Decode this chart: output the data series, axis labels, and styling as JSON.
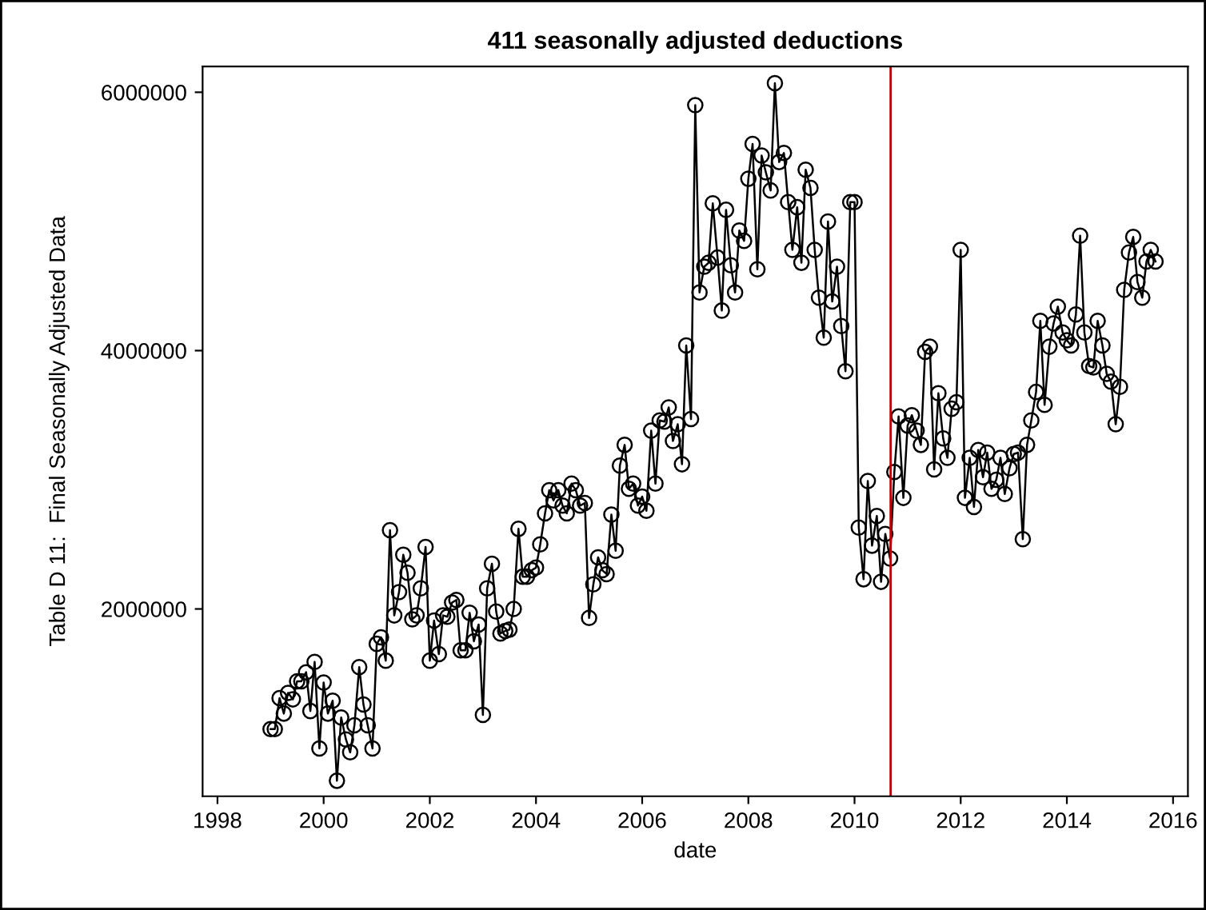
{
  "chart_data": {
    "type": "line",
    "title": "411 seasonally adjusted deductions",
    "xlabel": "date",
    "ylabel": "Table D 11:  Final Seasonally Adjusted Data",
    "series": [
      {
        "color": "#000000",
        "x": [
          1999.0,
          1999.08,
          1999.17,
          1999.25,
          1999.33,
          1999.42,
          1999.5,
          1999.58,
          1999.67,
          1999.75,
          1999.83,
          1999.92,
          2000.0,
          2000.08,
          2000.17,
          2000.25,
          2000.33,
          2000.42,
          2000.5,
          2000.58,
          2000.67,
          2000.75,
          2000.83,
          2000.92,
          2001.0,
          2001.08,
          2001.17,
          2001.25,
          2001.33,
          2001.42,
          2001.5,
          2001.58,
          2001.67,
          2001.75,
          2001.83,
          2001.92,
          2002.0,
          2002.08,
          2002.17,
          2002.25,
          2002.33,
          2002.42,
          2002.5,
          2002.58,
          2002.67,
          2002.75,
          2002.83,
          2002.92,
          2003.0,
          2003.08,
          2003.17,
          2003.25,
          2003.33,
          2003.42,
          2003.5,
          2003.58,
          2003.67,
          2003.75,
          2003.83,
          2003.92,
          2004.0,
          2004.08,
          2004.17,
          2004.25,
          2004.33,
          2004.42,
          2004.5,
          2004.58,
          2004.67,
          2004.75,
          2004.83,
          2004.92,
          2005.0,
          2005.08,
          2005.17,
          2005.25,
          2005.33,
          2005.42,
          2005.5,
          2005.58,
          2005.67,
          2005.75,
          2005.83,
          2005.92,
          2006.0,
          2006.08,
          2006.17,
          2006.25,
          2006.33,
          2006.42,
          2006.5,
          2006.58,
          2006.67,
          2006.75,
          2006.83,
          2006.92,
          2007.0,
          2007.08,
          2007.17,
          2007.25,
          2007.33,
          2007.42,
          2007.5,
          2007.58,
          2007.67,
          2007.75,
          2007.83,
          2007.92,
          2008.0,
          2008.08,
          2008.17,
          2008.25,
          2008.33,
          2008.42,
          2008.5,
          2008.58,
          2008.67,
          2008.75,
          2008.83,
          2008.92,
          2009.0,
          2009.08,
          2009.17,
          2009.25,
          2009.33,
          2009.42,
          2009.5,
          2009.58,
          2009.67,
          2009.75,
          2009.83,
          2009.92,
          2010.0,
          2010.08,
          2010.17,
          2010.25,
          2010.33,
          2010.42,
          2010.5,
          2010.58,
          2010.67,
          2010.75,
          2010.83,
          2010.92,
          2011.0,
          2011.08,
          2011.17,
          2011.25,
          2011.33,
          2011.42,
          2011.5,
          2011.58,
          2011.67,
          2011.75,
          2011.83,
          2011.92,
          2012.0,
          2012.08,
          2012.17,
          2012.25,
          2012.33,
          2012.42,
          2012.5,
          2012.58,
          2012.67,
          2012.75,
          2012.83,
          2012.92,
          2013.0,
          2013.08,
          2013.17,
          2013.25,
          2013.33,
          2013.42,
          2013.5,
          2013.58,
          2013.67,
          2013.75,
          2013.83,
          2013.92,
          2014.0,
          2014.08,
          2014.17,
          2014.25,
          2014.33,
          2014.42,
          2014.5,
          2014.58,
          2014.67,
          2014.75,
          2014.83,
          2014.92,
          2015.0,
          2015.08,
          2015.17,
          2015.25,
          2015.33,
          2015.42,
          2015.5,
          2015.58,
          2015.67
        ],
        "values": [
          1070000,
          1070000,
          1310000,
          1190000,
          1350000,
          1300000,
          1440000,
          1440000,
          1510000,
          1210000,
          1590000,
          920000,
          1430000,
          1190000,
          1290000,
          670000,
          1160000,
          990000,
          890000,
          1100000,
          1550000,
          1260000,
          1100000,
          920000,
          1730000,
          1780000,
          1600000,
          2610000,
          1950000,
          2130000,
          2420000,
          2280000,
          1920000,
          1950000,
          2160000,
          2480000,
          1600000,
          1910000,
          1650000,
          1950000,
          1940000,
          2050000,
          2070000,
          1680000,
          1680000,
          1970000,
          1750000,
          1880000,
          1180000,
          2160000,
          2350000,
          1980000,
          1810000,
          1830000,
          1840000,
          2000000,
          2620000,
          2250000,
          2250000,
          2300000,
          2320000,
          2500000,
          2740000,
          2920000,
          2840000,
          2920000,
          2800000,
          2740000,
          2970000,
          2920000,
          2800000,
          2820000,
          1930000,
          2190000,
          2400000,
          2300000,
          2270000,
          2730000,
          2450000,
          3110000,
          3270000,
          2930000,
          2970000,
          2800000,
          2870000,
          2760000,
          3380000,
          2970000,
          3460000,
          3450000,
          3560000,
          3300000,
          3430000,
          3120000,
          4040000,
          3470000,
          5900000,
          4450000,
          4650000,
          4680000,
          5140000,
          4720000,
          4310000,
          5090000,
          4660000,
          4450000,
          4930000,
          4850000,
          5330000,
          5600000,
          4630000,
          5510000,
          5380000,
          5240000,
          6070000,
          5460000,
          5530000,
          5150000,
          4780000,
          5110000,
          4680000,
          5400000,
          5260000,
          4780000,
          4410000,
          4100000,
          5000000,
          4380000,
          4650000,
          4190000,
          3840000,
          5150000,
          5150000,
          2630000,
          2230000,
          2990000,
          2490000,
          2720000,
          2210000,
          2580000,
          2390000,
          3060000,
          3490000,
          2860000,
          3420000,
          3500000,
          3380000,
          3270000,
          3990000,
          4030000,
          3080000,
          3670000,
          3320000,
          3170000,
          3550000,
          3600000,
          4780000,
          2860000,
          3170000,
          2790000,
          3230000,
          3020000,
          3210000,
          2930000,
          3000000,
          3170000,
          2890000,
          3090000,
          3200000,
          3210000,
          2540000,
          3270000,
          3460000,
          3680000,
          4230000,
          3580000,
          4030000,
          4210000,
          4340000,
          4140000,
          4080000,
          4040000,
          4280000,
          4890000,
          4140000,
          3880000,
          3870000,
          4230000,
          4040000,
          3820000,
          3760000,
          3430000,
          3720000,
          4470000,
          4760000,
          4880000,
          4530000,
          4410000,
          4690000,
          4780000,
          4690000
        ]
      }
    ],
    "xlim": [
      1997.72,
      2016.28
    ],
    "xticks": [
      1998,
      2000,
      2002,
      2004,
      2006,
      2008,
      2010,
      2012,
      2014,
      2016
    ],
    "ylim": [
      550000,
      6200000
    ],
    "yticks": [
      2000000,
      4000000,
      6000000
    ],
    "ref_lines": [
      {
        "axis": "x",
        "value": 2010.68,
        "color": "#c00000"
      }
    ],
    "marker": "circle",
    "line_style": "solid",
    "grid": false,
    "legend": false
  }
}
